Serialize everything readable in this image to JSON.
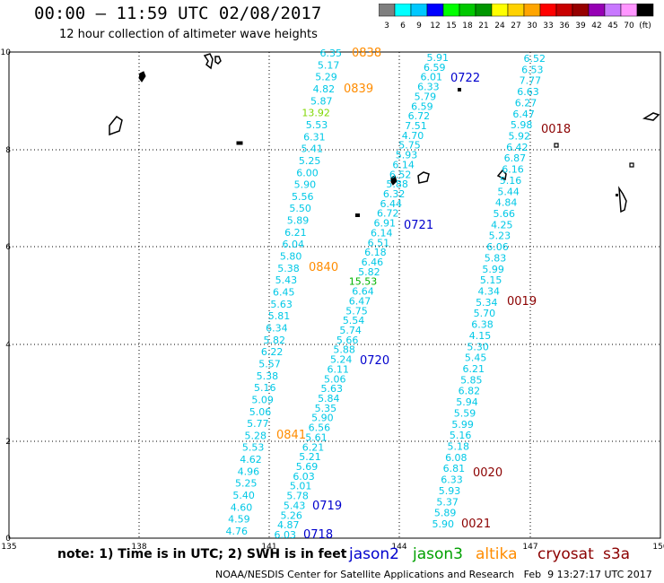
{
  "header": {
    "title": "00:00 – 11:59 UTC 02/08/2017",
    "subtitle": "12 hour collection of altimeter wave heights"
  },
  "colorbar": {
    "labels": [
      "3",
      "6",
      "9",
      "12",
      "15",
      "18",
      "21",
      "24",
      "27",
      "30",
      "33",
      "36",
      "39",
      "42",
      "45",
      "70",
      "(ft)"
    ],
    "colors": [
      "#7f7f7f",
      "#00ffff",
      "#00c8ff",
      "#0000ff",
      "#00ff00",
      "#00c800",
      "#009600",
      "#ffff00",
      "#ffd200",
      "#ffa500",
      "#ff0000",
      "#c80000",
      "#960000",
      "#9600b4",
      "#c878ff",
      "#ff96ff",
      "#000000"
    ]
  },
  "axes": {
    "x_ticks": [
      "135",
      "138",
      "141",
      "144",
      "147",
      "150"
    ],
    "y_ticks": [
      "10",
      "8",
      "6",
      "4",
      "2",
      "0"
    ]
  },
  "passes": [
    {
      "time": "0838",
      "sat": "altika"
    },
    {
      "time": "0839",
      "sat": "altika"
    },
    {
      "time": "0840",
      "sat": "altika"
    },
    {
      "time": "0841",
      "sat": "altika"
    },
    {
      "time": "0722",
      "sat": "jason2"
    },
    {
      "time": "0721",
      "sat": "jason2"
    },
    {
      "time": "0720",
      "sat": "jason2"
    },
    {
      "time": "0719",
      "sat": "jason2"
    },
    {
      "time": "0718",
      "sat": "jason2"
    },
    {
      "time": "0018",
      "sat": "cryosat"
    },
    {
      "time": "0019",
      "sat": "cryosat"
    },
    {
      "time": "0020",
      "sat": "cryosat"
    },
    {
      "time": "0021",
      "sat": "cryosat"
    }
  ],
  "track_altika": [
    "6.35",
    "5.17",
    "5.29",
    "4.82",
    "5.87",
    "13.92",
    "5.53",
    "6.31",
    "5.41",
    "5.25",
    "6.00",
    "5.90",
    "5.56",
    "5.50",
    "5.89",
    "6.21",
    "6.04",
    "5.80",
    "5.38",
    "5.43",
    "6.45",
    "5.63",
    "5.81",
    "6.34",
    "5.82",
    "6.22",
    "5.57",
    "5.38",
    "5.16",
    "5.09",
    "5.06",
    "5.77",
    "5.28",
    "5.53",
    "4.62",
    "4.96",
    "5.25",
    "5.40",
    "4.60",
    "4.59",
    "4.76"
  ],
  "track_jason2": [
    "5.91",
    "6.59",
    "6.01",
    "6.33",
    "5.79",
    "6.59",
    "6.72",
    "7.51",
    "4.70",
    "5.75",
    "5.93",
    "6.14",
    "6.52",
    "5.88",
    "6.32",
    "6.44",
    "6.72",
    "6.91",
    "6.14",
    "6.51",
    "6.18",
    "6.46",
    "5.82",
    "15.53",
    "6.64",
    "6.47",
    "5.75",
    "5.54",
    "5.74",
    "5.66",
    "5.88",
    "5.24",
    "6.11",
    "5.06",
    "5.63",
    "5.84",
    "5.35",
    "5.90",
    "6.56",
    "5.61",
    "6.21",
    "5.21",
    "5.69",
    "6.03",
    "5.01",
    "5.78",
    "5.43",
    "5.26",
    "4.87",
    "6.03"
  ],
  "track_cryosat": [
    "6.52",
    "6.53",
    "7.77",
    "6.63",
    "6.27",
    "6.47",
    "5.98",
    "5.92",
    "6.42",
    "6.87",
    "6.16",
    "5.16",
    "5.44",
    "4.84",
    "5.66",
    "4.25",
    "5.23",
    "6.06",
    "5.83",
    "5.99",
    "5.15",
    "4.34",
    "5.34",
    "5.70",
    "6.38",
    "4.15",
    "5.30",
    "5.45",
    "6.21",
    "5.85",
    "6.82",
    "5.94",
    "5.59",
    "5.99",
    "5.16",
    "5.18",
    "6.08",
    "6.81",
    "6.33",
    "5.93",
    "5.37",
    "5.89",
    "5.90"
  ],
  "legend": {
    "note": "note: 1) Time is in UTC; 2) SWH is in feet",
    "jason2": "jason2",
    "jason3": "jason3",
    "altika": "altika",
    "cryosat": "cryosat",
    "s3a": "s3a",
    "credit": "NOAA/NESDIS Center for Satellite Applications and Research   Feb  9 13:27:17 UTC 2017"
  },
  "colors": {
    "track_value": "#00c8e6",
    "altika": "#ff8c00",
    "jason2": "#0000cd",
    "jason3": "#00a000",
    "cryosat": "#8b0000",
    "s3a": "#8b0000",
    "outlier_altika": "#7fd700",
    "outlier_jason2": "#00b400"
  }
}
